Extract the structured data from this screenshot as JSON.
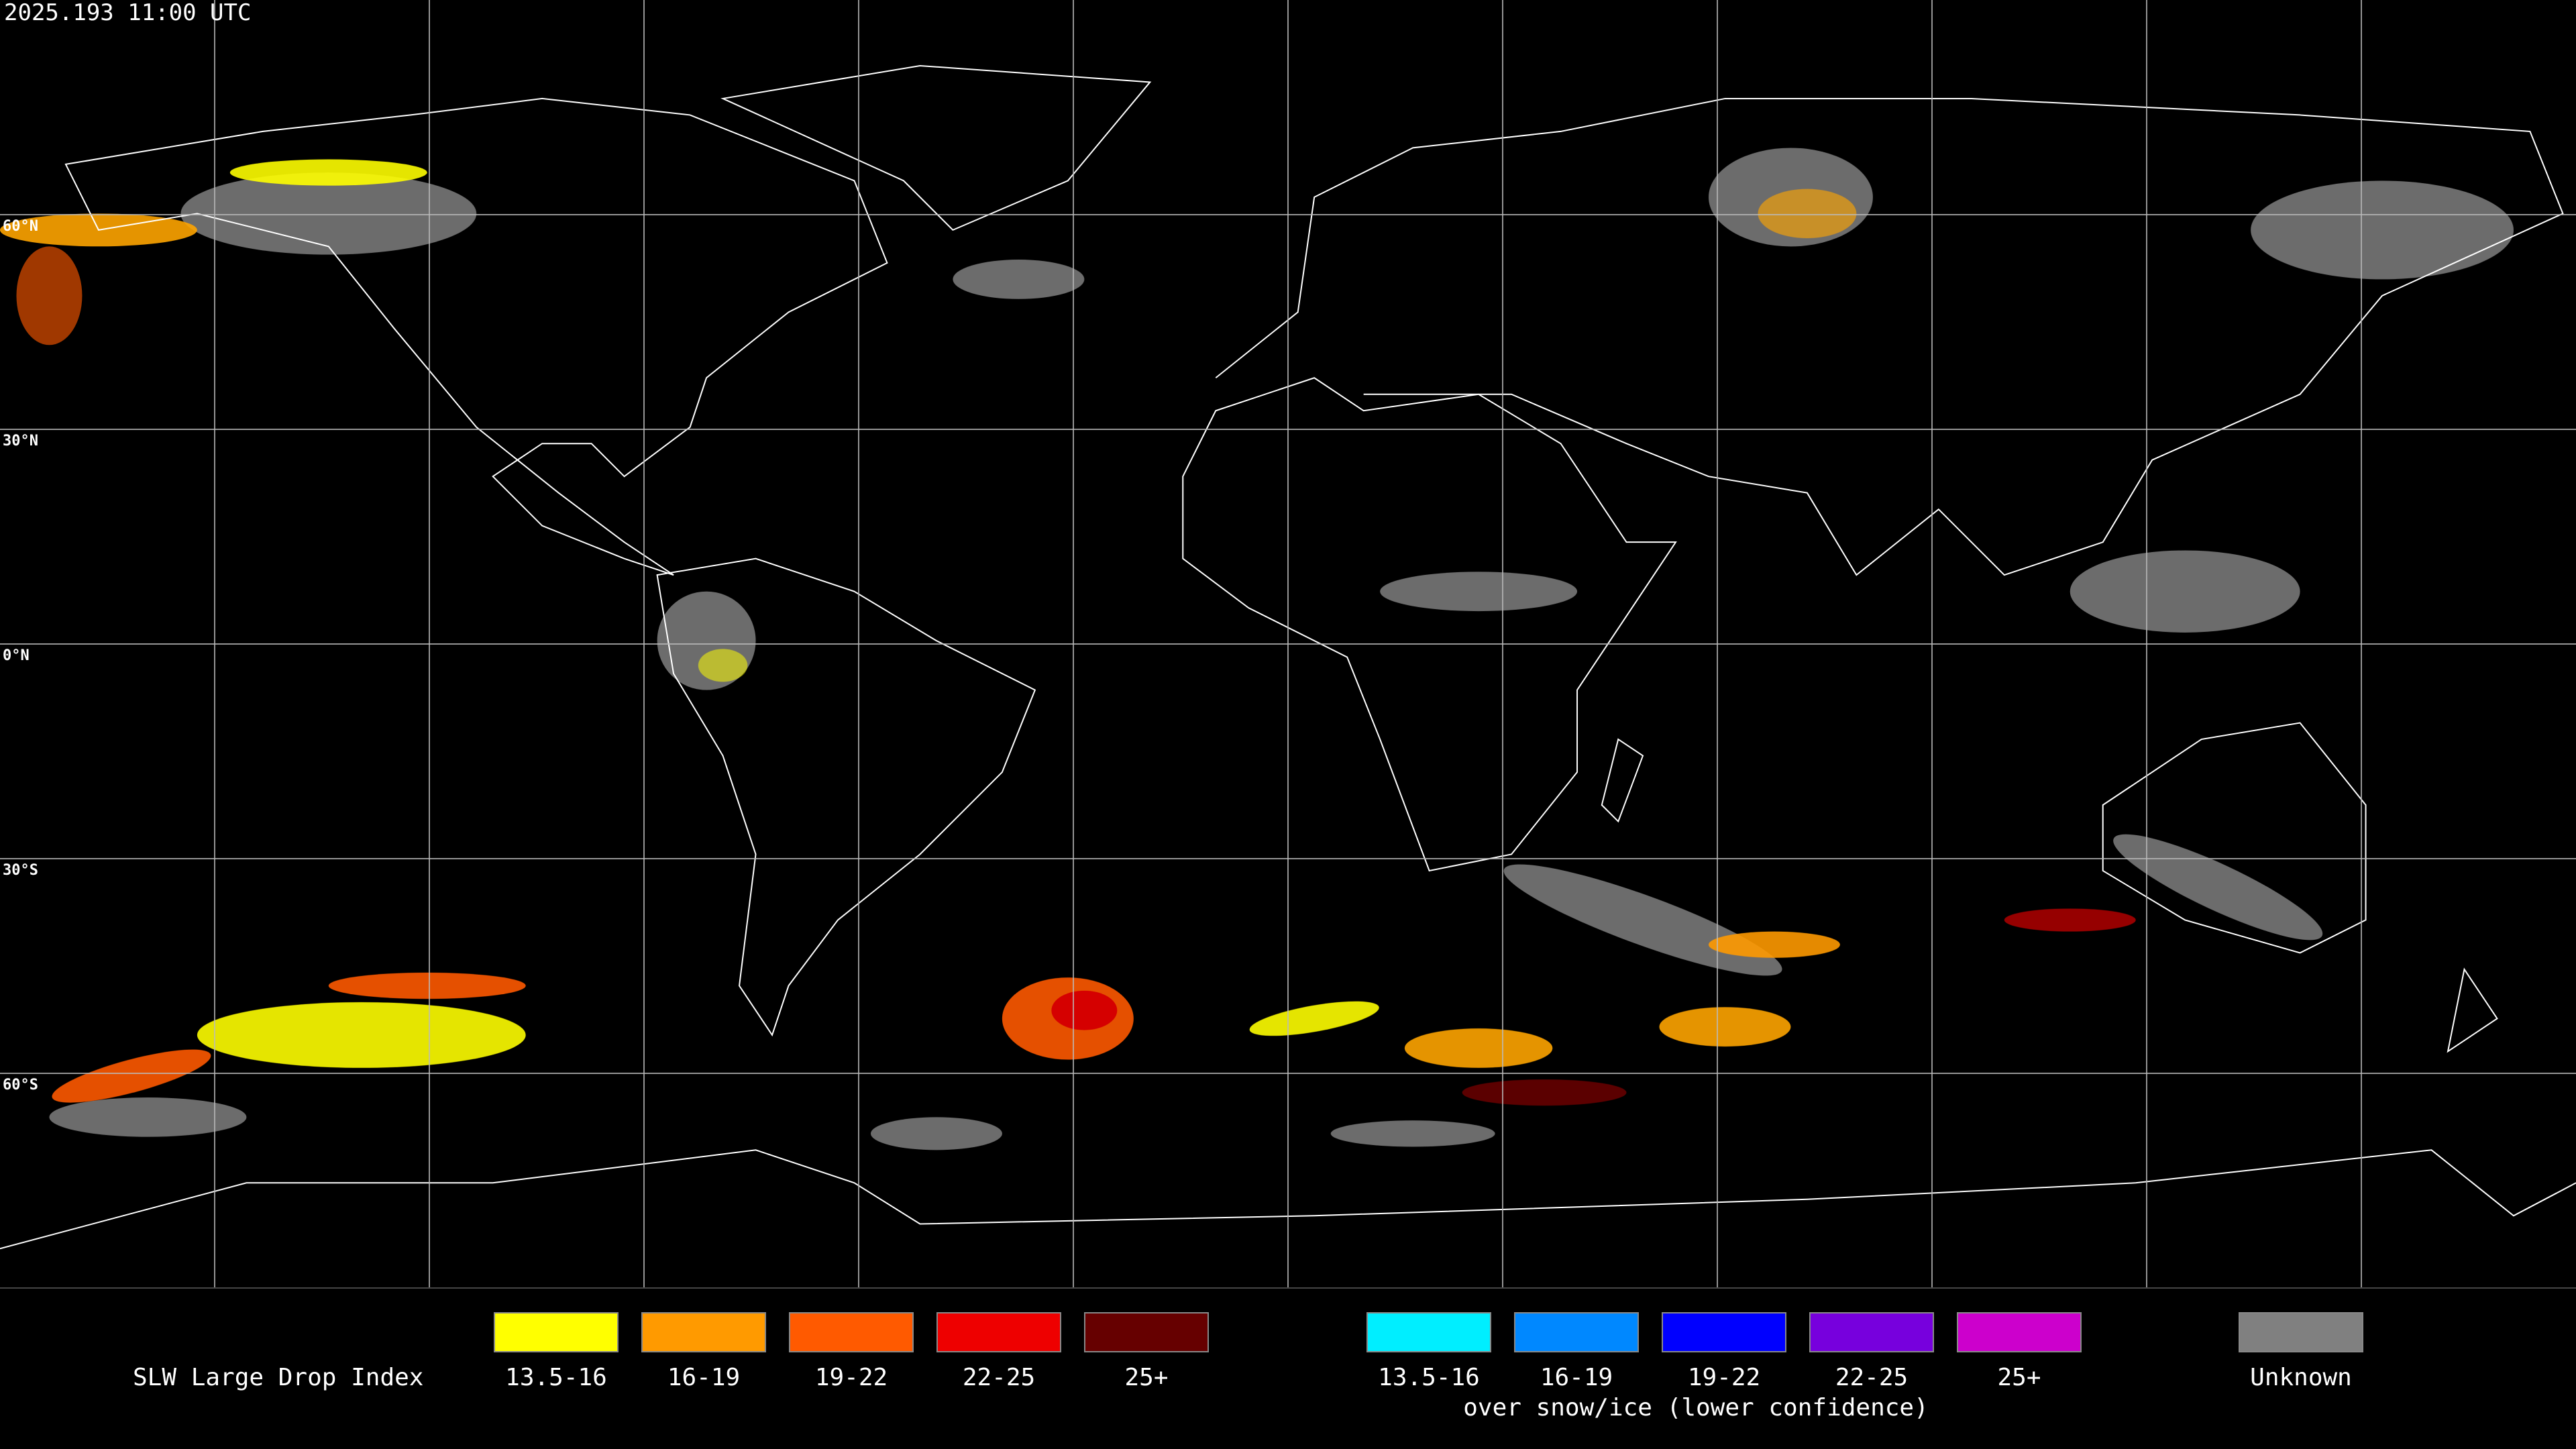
{
  "header": {
    "timestamp": "2025.193 11:00 UTC"
  },
  "map": {
    "latitude_labels": [
      "60°N",
      "30°N",
      "0°N",
      "30°S",
      "60°S"
    ]
  },
  "legend": {
    "title": "SLW Large Drop Index",
    "liquid": [
      {
        "label": "13.5-16",
        "color": "#ffff00"
      },
      {
        "label": "16-19",
        "color": "#ff9a00"
      },
      {
        "label": "19-22",
        "color": "#ff5a00"
      },
      {
        "label": "22-25",
        "color": "#ee0000"
      },
      {
        "label": "25+",
        "color": "#660000"
      }
    ],
    "snow_ice": {
      "items": [
        {
          "label": "13.5-16",
          "color": "#00eeff"
        },
        {
          "label": "16-19",
          "color": "#0088ff"
        },
        {
          "label": "19-22",
          "color": "#0000ff"
        },
        {
          "label": "22-25",
          "color": "#7700dd"
        },
        {
          "label": "25+",
          "color": "#cc00cc"
        }
      ],
      "caption": "over snow/ice (lower confidence)"
    },
    "unknown": {
      "label": "Unknown",
      "color": "#808080"
    }
  }
}
